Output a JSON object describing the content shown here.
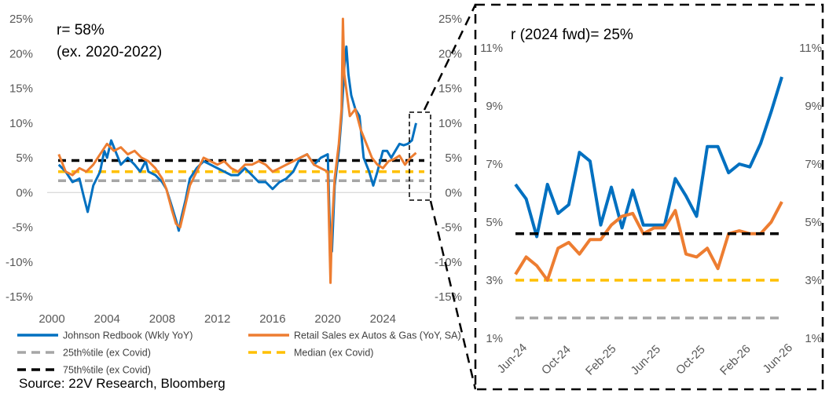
{
  "chart_data": [
    {
      "type": "line",
      "x_ticks": [
        "2000",
        "2004",
        "2008",
        "2012",
        "2016",
        "2020",
        "2024"
      ],
      "y_ticks": [
        "25%",
        "20%",
        "15%",
        "10%",
        "5%",
        "0%",
        "-5%",
        "-10%",
        "-15%"
      ],
      "y_ticks_right": [
        "25%",
        "20%",
        "15%",
        "10%",
        "5%",
        "0%",
        "-5%",
        "-10%",
        "-15%"
      ],
      "xlim": [
        2000,
        2027
      ],
      "ylim": [
        -15,
        25
      ],
      "annotation": [
        "r=  58%",
        "(ex. 2020-2022)"
      ],
      "series": [
        {
          "name": "Johnson Redbook (Wkly YoY)",
          "color": "#0070C0",
          "x": [
            2000.5,
            2001,
            2001.5,
            2002,
            2002.3,
            2002.6,
            2003,
            2003.5,
            2003.8,
            2004,
            2004.3,
            2004.7,
            2005,
            2005.5,
            2006,
            2006.4,
            2006.8,
            2007,
            2007.5,
            2008,
            2008.3,
            2008.7,
            2009,
            2009.2,
            2009.4,
            2009.7,
            2010,
            2010.5,
            2011,
            2011.5,
            2012,
            2012.5,
            2013,
            2013.5,
            2014,
            2014.5,
            2015,
            2015.5,
            2016,
            2016.5,
            2017,
            2017.5,
            2018,
            2018.5,
            2019,
            2019.5,
            2020,
            2020.15,
            2020.3,
            2020.5,
            2020.8,
            2021,
            2021.2,
            2021.35,
            2021.5,
            2021.7,
            2022,
            2022.3,
            2022.6,
            2023,
            2023.3,
            2023.6,
            2024,
            2024.3,
            2024.6,
            2024.9,
            2025.2,
            2025.5,
            2025.8,
            2026.1,
            2026.4
          ],
          "y": [
            4.0,
            3.0,
            1.5,
            2.0,
            -0.5,
            -2.8,
            1.0,
            3.0,
            6.0,
            5.0,
            7.5,
            5.5,
            4.0,
            5.0,
            4.0,
            3.0,
            4.5,
            3.0,
            2.5,
            1.5,
            0.5,
            -2.0,
            -4.0,
            -5.5,
            -3.5,
            -1.0,
            2.0,
            3.5,
            4.5,
            4.0,
            3.5,
            3.0,
            2.5,
            2.5,
            3.5,
            2.5,
            1.5,
            1.5,
            0.5,
            1.5,
            2.0,
            3.0,
            5.0,
            5.5,
            4.0,
            5.0,
            5.5,
            -5.0,
            -8.5,
            1.0,
            6.0,
            11.0,
            18.0,
            21.0,
            17.0,
            14.0,
            12.0,
            11.0,
            5.0,
            3.0,
            1.0,
            3.0,
            6.0,
            6.0,
            5.0,
            6.0,
            7.0,
            6.8,
            7.0,
            7.5,
            10.0
          ]
        },
        {
          "name": "Retail Sales ex Autos & Gas (YoY, SA)",
          "color": "#ED7D31",
          "x": [
            2000.5,
            2001,
            2001.5,
            2002,
            2002.5,
            2003,
            2003.5,
            2004,
            2004.5,
            2005,
            2005.5,
            2006,
            2006.5,
            2007,
            2007.5,
            2008,
            2008.3,
            2008.7,
            2009,
            2009.3,
            2009.6,
            2010,
            2010.5,
            2011,
            2011.5,
            2012,
            2012.5,
            2013,
            2013.5,
            2014,
            2014.5,
            2015,
            2015.5,
            2016,
            2016.5,
            2017,
            2017.5,
            2018,
            2018.5,
            2019,
            2019.5,
            2020,
            2020.2,
            2020.3,
            2020.5,
            2020.8,
            2021,
            2021.1,
            2021.2,
            2021.4,
            2021.6,
            2022,
            2022.4,
            2022.8,
            2023.2,
            2023.6,
            2024,
            2024.4,
            2024.8,
            2025.2,
            2025.6,
            2026,
            2026.4
          ],
          "y": [
            5.5,
            3.0,
            2.5,
            3.5,
            3.0,
            4.0,
            5.5,
            7.0,
            6.0,
            6.5,
            5.5,
            6.0,
            5.0,
            4.5,
            3.5,
            2.0,
            0.5,
            -2.5,
            -4.5,
            -5.0,
            -2.5,
            1.0,
            3.0,
            5.0,
            4.5,
            4.0,
            4.5,
            3.5,
            3.0,
            4.0,
            4.0,
            4.5,
            4.0,
            3.0,
            3.5,
            4.0,
            4.5,
            5.0,
            5.5,
            4.0,
            3.5,
            3.0,
            -13.0,
            -5.0,
            2.0,
            7.0,
            12.0,
            25.0,
            17.0,
            14.0,
            11.0,
            12.0,
            9.0,
            7.0,
            5.0,
            4.0,
            3.5,
            4.5,
            4.8,
            5.3,
            4.0,
            5.0,
            5.7
          ]
        },
        {
          "name": "25th%tile (ex Covid)",
          "color": "#A6A6A6",
          "value": 1.7
        },
        {
          "name": "Median (ex Covid)",
          "color": "#FFC000",
          "value": 3.0
        },
        {
          "name": "75th%tile (ex Covid)",
          "color": "#000000",
          "value": 4.6
        }
      ]
    },
    {
      "type": "line",
      "x_ticks": [
        "Jun-24",
        "Oct-24",
        "Feb-25",
        "Jun-25",
        "Oct-25",
        "Feb-26",
        "Jun-26"
      ],
      "y_ticks": [
        "11%",
        "9%",
        "7%",
        "5%",
        "3%",
        "1%"
      ],
      "y_ticks_right": [
        "11%",
        "9%",
        "7%",
        "5%",
        "3%",
        "1%"
      ],
      "ylim": [
        1,
        11
      ],
      "annotation": [
        "r (2024 fwd)=  25%"
      ],
      "series": [
        {
          "name": "Johnson Redbook (Wkly YoY)",
          "color": "#0070C0",
          "y": [
            6.3,
            5.8,
            4.5,
            6.3,
            5.3,
            5.6,
            7.4,
            7.1,
            4.9,
            6.2,
            4.8,
            6.1,
            4.9,
            4.9,
            4.9,
            6.5,
            5.9,
            5.2,
            7.6,
            7.6,
            6.7,
            7.0,
            6.9,
            7.7,
            8.8,
            10.0
          ]
        },
        {
          "name": "Retail Sales ex Autos & Gas (YoY, SA)",
          "color": "#ED7D31",
          "y": [
            3.2,
            3.8,
            3.5,
            3.0,
            4.1,
            4.3,
            3.9,
            4.4,
            4.4,
            4.9,
            5.2,
            5.3,
            4.6,
            4.8,
            4.8,
            5.4,
            3.9,
            3.8,
            4.1,
            3.4,
            4.6,
            4.7,
            4.6,
            4.6,
            5.0,
            5.7
          ]
        },
        {
          "name": "25th%tile (ex Covid)",
          "color": "#A6A6A6",
          "value": 1.7
        },
        {
          "name": "Median (ex Covid)",
          "color": "#FFC000",
          "value": 3.0
        },
        {
          "name": "75th%tile (ex Covid)",
          "color": "#000000",
          "value": 4.6
        }
      ]
    }
  ],
  "legend": [
    {
      "label": "Johnson Redbook (Wkly YoY)",
      "color": "#0070C0",
      "style": "solid"
    },
    {
      "label": "Retail Sales ex Autos & Gas (YoY, SA)",
      "color": "#ED7D31",
      "style": "solid"
    },
    {
      "label": "25th%tile (ex Covid)",
      "color": "#A6A6A6",
      "style": "dashed"
    },
    {
      "label": "Median (ex Covid)",
      "color": "#FFC000",
      "style": "dashed"
    },
    {
      "label": "75th%tile (ex Covid)",
      "color": "#000000",
      "style": "dashed"
    }
  ],
  "source": "Source: 22V Research, Bloomberg"
}
